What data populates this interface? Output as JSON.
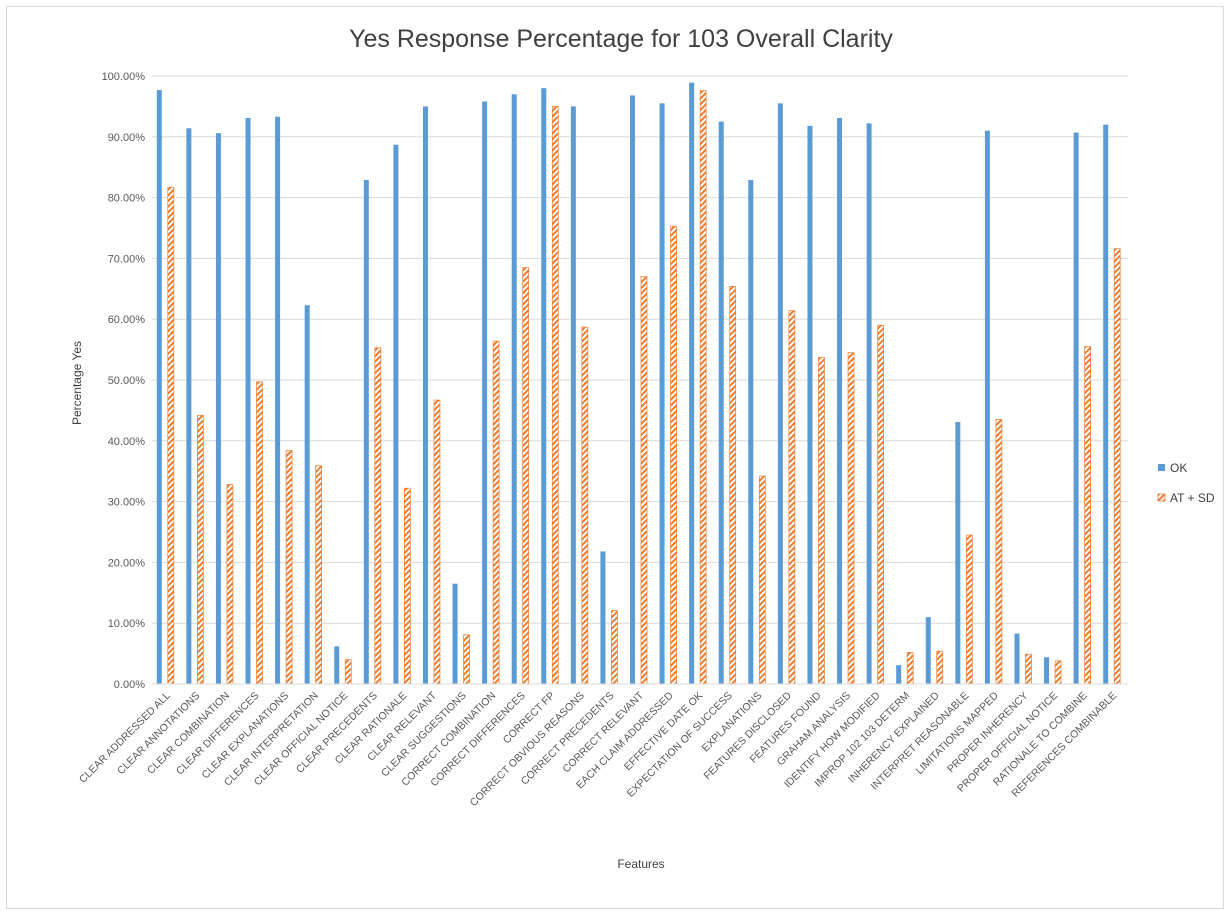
{
  "chart_data": {
    "type": "bar",
    "title": "Yes Response Percentage for 103 Overall Clarity",
    "xlabel": "Features",
    "ylabel": "Percentage Yes",
    "ylim": [
      0,
      1
    ],
    "y_ticks": [
      "0.00%",
      "10.00%",
      "20.00%",
      "30.00%",
      "40.00%",
      "50.00%",
      "60.00%",
      "70.00%",
      "80.00%",
      "90.00%",
      "100.00%"
    ],
    "grid": true,
    "legend_position": "right",
    "categories": [
      "CLEAR ADDRESSED ALL",
      "CLEAR ANNOTATIONS",
      "CLEAR COMBINATION",
      "CLEAR DIFFERENCES",
      "CLEAR EXPLANATIONS",
      "CLEAR INTERPRETATION",
      "CLEAR OFFICIAL NOTICE",
      "CLEAR PRECEDENTS",
      "CLEAR RATIONALE",
      "CLEAR RELEVANT",
      "CLEAR SUGGESTIONS",
      "CORRECT COMBINATION",
      "CORRECT DIFFERENCES",
      "CORRECT FP",
      "CORRECT OBVIOUS REASONS",
      "CORRECT PRECEDENTS",
      "CORRECT RELEVANT",
      "EACH CLAIM ADDRESSED",
      "EFFECTIVE DATE OK",
      "EXPECTATION OF SUCCESS",
      "EXPLANATIONS",
      "FEATURES DISCLOSED",
      "FEATURES FOUND",
      "GRAHAM ANALYSIS",
      "IDENTIFY HOW MODIFIED",
      "IMPROP 102 103 DETERM",
      "INHERENCY EXPLAINED",
      "INTERPRET REASONABLE",
      "LIMITATIONS MAPPED",
      "PROPER INHERENCY",
      "PROPER OFFICIAL NOTICE",
      "RATIONALE TO COMBINE",
      "REFERENCES COMBINABLE"
    ],
    "series": [
      {
        "name": "OK",
        "color": "#5b9bd5",
        "values": [
          0.977,
          0.914,
          0.906,
          0.931,
          0.933,
          0.623,
          0.062,
          0.829,
          0.887,
          0.95,
          0.165,
          0.958,
          0.97,
          0.98,
          0.95,
          0.218,
          0.968,
          0.955,
          0.989,
          0.925,
          0.829,
          0.955,
          0.918,
          0.931,
          0.922,
          0.031,
          0.11,
          0.431,
          0.91,
          0.083,
          0.044,
          0.907,
          0.92
        ]
      },
      {
        "name": "AT + SD",
        "color": "#ed7d31",
        "values": [
          0.817,
          0.442,
          0.328,
          0.497,
          0.384,
          0.359,
          0.04,
          0.553,
          0.322,
          0.467,
          0.081,
          0.564,
          0.685,
          0.95,
          0.587,
          0.121,
          0.67,
          0.753,
          0.976,
          0.654,
          0.342,
          0.614,
          0.537,
          0.545,
          0.59,
          0.052,
          0.054,
          0.245,
          0.435,
          0.049,
          0.038,
          0.555,
          0.716
        ]
      }
    ]
  }
}
